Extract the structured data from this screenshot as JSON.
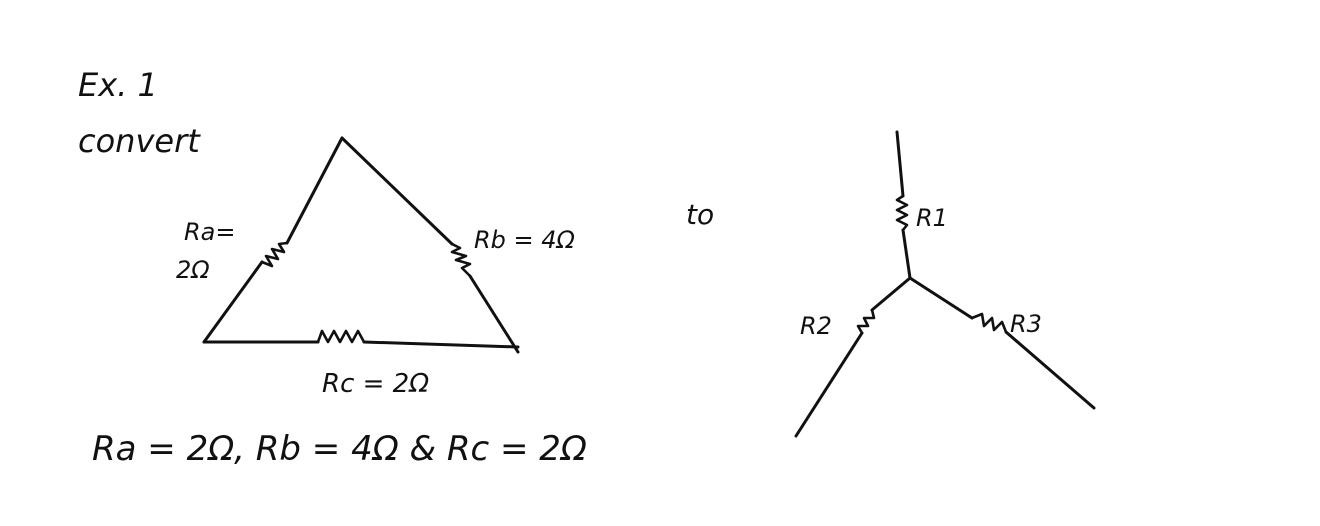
{
  "heading": {
    "example": "Ex. 1",
    "instruction": "convert"
  },
  "delta": {
    "ra_label_line1": "Ra=",
    "ra_label_line2": "2Ω",
    "rb_label": "Rb = 4Ω",
    "rc_label": "Rc = 2Ω"
  },
  "connector": "to",
  "star": {
    "r1_label": "R1",
    "r2_label": "R2",
    "r3_label": "R3"
  },
  "given": "Ra = 2Ω, Rb = 4Ω & Rc = 2Ω"
}
